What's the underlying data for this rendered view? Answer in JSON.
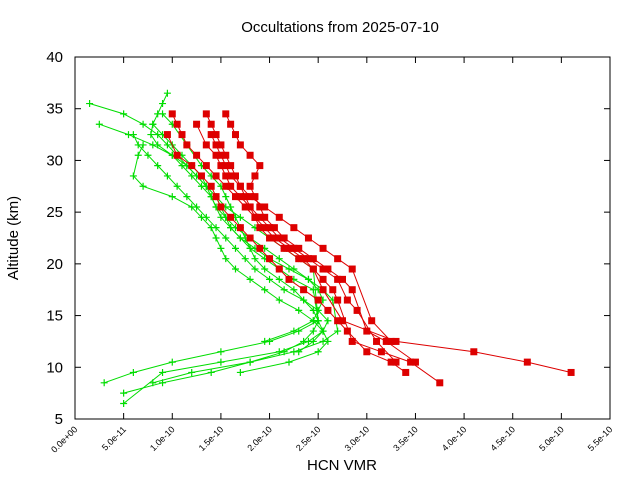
{
  "chart_data": {
    "type": "scatter",
    "title": "Occultations from 2025-07-10",
    "xlabel": "HCN VMR",
    "ylabel": "Altitude (km)",
    "xlim": [
      0,
      5.5e-10
    ],
    "ylim": [
      5,
      40
    ],
    "x_ticks": [
      0,
      5e-11,
      1e-10,
      1.5e-10,
      2e-10,
      2.5e-10,
      3e-10,
      3.5e-10,
      4e-10,
      4.5e-10,
      5e-10,
      5.5e-10
    ],
    "x_tick_labels": [
      "0.0e+00",
      "5.0e-11",
      "1.0e-10",
      "1.5e-10",
      "2.0e-10",
      "2.5e-10",
      "3.0e-10",
      "3.5e-10",
      "4.0e-10",
      "4.5e-10",
      "5.0e-10",
      "5.5e-10"
    ],
    "y_ticks": [
      5,
      10,
      15,
      20,
      25,
      30,
      35,
      40
    ],
    "y_tick_labels": [
      "5",
      "10",
      "15",
      "20",
      "25",
      "30",
      "35",
      "40"
    ],
    "grid": false,
    "legend": "none",
    "series_colors": {
      "plus_profiles": "#00dd00",
      "square_profiles": "#dd0000"
    },
    "series": [
      {
        "marker": "plus",
        "color": "#00dd00",
        "x": [
          9.5e-11,
          9e-11,
          8.5e-11,
          8e-11,
          7.8e-11,
          8.5e-11,
          1e-10,
          1.15e-10,
          1.25e-10,
          1.35e-10,
          1.45e-10,
          1.55e-10,
          1.7e-10,
          1.85e-10,
          2e-10,
          2.15e-10,
          2.3e-10,
          2.45e-10,
          2.5e-10,
          2.3e-10,
          2e-10,
          1.5e-10,
          1e-10,
          6e-11,
          3e-11
        ],
        "y": [
          36.5,
          35.5,
          34.5,
          33.5,
          32.5,
          31.5,
          30.5,
          29.5,
          28.5,
          27.5,
          26.5,
          25.5,
          24.5,
          23.5,
          22.5,
          21.5,
          20.5,
          19.5,
          14.5,
          13.5,
          12.5,
          11.5,
          10.5,
          9.5,
          8.5
        ]
      },
      {
        "marker": "plus",
        "color": "#00dd00",
        "x": [
          1.5e-11,
          5e-11,
          7e-11,
          8.5e-11,
          9.5e-11,
          1.05e-10,
          1.15e-10,
          1.25e-10,
          1.35e-10,
          1.45e-10,
          1.5e-10,
          1.55e-10,
          1.6e-10,
          1.7e-10,
          1.8e-10,
          1.95e-10,
          2.1e-10,
          2.25e-10,
          2.45e-10,
          2.5e-10,
          2.45e-10,
          2.35e-10,
          2.15e-10,
          1.8e-10,
          1.4e-10,
          9e-11,
          5e-11
        ],
        "y": [
          35.5,
          34.5,
          33.5,
          32.5,
          31.5,
          30.5,
          29.5,
          28.5,
          27.5,
          26.5,
          25.5,
          24.5,
          23.5,
          22.5,
          21.5,
          20.5,
          19.5,
          18.5,
          17.5,
          14.5,
          13.5,
          12.5,
          11.5,
          10.5,
          9.5,
          8.5,
          7.5
        ]
      },
      {
        "marker": "plus",
        "color": "#00dd00",
        "x": [
          2.5e-11,
          5.5e-11,
          8e-11,
          1e-10,
          1.1e-10,
          1.2e-10,
          1.3e-10,
          1.4e-10,
          1.45e-10,
          1.5e-10,
          1.6e-10,
          1.7e-10,
          1.85e-10,
          2e-10,
          2.2e-10,
          2.4e-10,
          2.55e-10,
          2.65e-10,
          2.7e-10,
          2.55e-10,
          2.25e-10,
          1.8e-10,
          1.2e-10,
          8e-11
        ],
        "y": [
          33.5,
          32.5,
          31.5,
          30.5,
          29.5,
          28.5,
          27.5,
          26.5,
          25.5,
          24.5,
          23.5,
          22.5,
          21.5,
          20.5,
          19.5,
          18.5,
          17.5,
          16.5,
          13.5,
          12.5,
          11.5,
          10.5,
          9.5,
          8.5
        ]
      },
      {
        "marker": "plus",
        "color": "#00dd00",
        "x": [
          6e-11,
          6.5e-11,
          7.5e-11,
          8.5e-11,
          9.5e-11,
          1.05e-10,
          1.15e-10,
          1.25e-10,
          1.35e-10,
          1.45e-10,
          1.55e-10,
          1.65e-10,
          1.75e-10,
          1.85e-10,
          2e-10,
          2.15e-10,
          2.35e-10,
          2.5e-10,
          2.6e-10,
          2.55e-10,
          2.4e-10,
          2.1e-10,
          1.5e-10,
          9e-11,
          5e-11
        ],
        "y": [
          32.5,
          31.5,
          30.5,
          29.5,
          28.5,
          27.5,
          26.5,
          25.5,
          24.5,
          23.5,
          22.5,
          21.5,
          20.5,
          19.5,
          18.5,
          17.5,
          16.5,
          15.5,
          14.5,
          13.5,
          12.5,
          11.5,
          10.5,
          9.5,
          6.5
        ]
      },
      {
        "marker": "plus",
        "color": "#00dd00",
        "x": [
          7e-11,
          6.5e-11,
          6e-11,
          7e-11,
          1e-10,
          1.2e-10,
          1.3e-10,
          1.4e-10,
          1.45e-10,
          1.5e-10,
          1.55e-10,
          1.65e-10,
          1.8e-10,
          1.95e-10,
          2.1e-10,
          2.3e-10,
          2.45e-10,
          2.55e-10,
          2.6e-10,
          2.5e-10,
          2.2e-10,
          1.7e-10
        ],
        "y": [
          31.5,
          30.5,
          28.5,
          27.5,
          26.5,
          25.5,
          24.5,
          23.5,
          22.5,
          21.5,
          20.5,
          19.5,
          18.5,
          17.5,
          16.5,
          15.5,
          14.5,
          13.5,
          12.5,
          11.5,
          10.5,
          9.5
        ]
      },
      {
        "marker": "plus",
        "color": "#00dd00",
        "x": [
          8e-11,
          9e-11,
          1e-10,
          1.1e-10,
          1.2e-10,
          1.3e-10,
          1.35e-10,
          1.4e-10,
          1.45e-10,
          1.55e-10,
          1.65e-10,
          1.8e-10,
          1.95e-10,
          2.1e-10,
          2.25e-10,
          2.4e-10,
          2.5e-10,
          2.55e-10,
          2.45e-10,
          2.25e-10,
          1.95e-10
        ],
        "y": [
          33.5,
          32.5,
          31.5,
          30.5,
          29.5,
          28.5,
          27.5,
          26.5,
          25.5,
          24.5,
          23.5,
          22.5,
          21.5,
          20.5,
          19.5,
          18.5,
          17.5,
          16.5,
          14.5,
          13.5,
          12.5
        ]
      },
      {
        "marker": "plus",
        "color": "#00dd00",
        "x": [
          9e-11,
          1e-10,
          1.15e-10,
          1.3e-10,
          1.4e-10,
          1.5e-10,
          1.55e-10,
          1.6e-10,
          1.65e-10,
          1.7e-10,
          1.75e-10,
          1.8e-10,
          1.85e-10,
          1.95e-10,
          2.1e-10,
          2.25e-10,
          2.35e-10,
          2.45e-10,
          2.55e-10,
          2.45e-10,
          2.3e-10
        ],
        "y": [
          34.5,
          33.5,
          31.5,
          29.5,
          28.5,
          27.5,
          26.5,
          25.5,
          24.5,
          23.5,
          22.5,
          21.5,
          20.5,
          19.5,
          18.5,
          17.5,
          16.5,
          15.5,
          13.5,
          12.5,
          11.5
        ]
      },
      {
        "marker": "square",
        "color": "#dd0000",
        "x": [
          1e-10,
          1.05e-10,
          1.1e-10,
          1.15e-10,
          1.25e-10,
          1.35e-10,
          1.45e-10,
          1.55e-10,
          1.65e-10,
          1.75e-10,
          1.85e-10,
          1.95e-10,
          2.05e-10,
          2.2e-10,
          2.35e-10,
          2.45e-10,
          2.55e-10,
          2.75e-10,
          3.3e-10,
          4.1e-10,
          4.65e-10,
          5.1e-10
        ],
        "y": [
          34.5,
          33.5,
          32.5,
          31.5,
          30.5,
          29.5,
          28.5,
          27.5,
          26.5,
          25.5,
          24.5,
          23.5,
          22.5,
          21.5,
          20.5,
          19.5,
          17.5,
          14.5,
          12.5,
          11.5,
          10.5,
          9.5
        ]
      },
      {
        "marker": "square",
        "color": "#dd0000",
        "x": [
          1.35e-10,
          1.4e-10,
          1.45e-10,
          1.5e-10,
          1.55e-10,
          1.6e-10,
          1.65e-10,
          1.7e-10,
          1.75e-10,
          1.8e-10,
          1.85e-10,
          1.9e-10,
          2e-10,
          2.15e-10,
          2.3e-10,
          2.45e-10,
          2.55e-10,
          2.65e-10,
          2.7e-10,
          2.85e-10,
          3.15e-10,
          3.45e-10,
          3.75e-10
        ],
        "y": [
          34.5,
          33.5,
          32.5,
          31.5,
          30.5,
          29.5,
          28.5,
          27.5,
          26.5,
          25.5,
          24.5,
          23.5,
          22.5,
          21.5,
          20.5,
          19.5,
          18.5,
          17.5,
          16.5,
          12.5,
          11.5,
          10.5,
          8.5
        ]
      },
      {
        "marker": "square",
        "color": "#dd0000",
        "x": [
          1.55e-10,
          1.6e-10,
          1.65e-10,
          1.7e-10,
          1.8e-10,
          1.9e-10,
          1.85e-10,
          1.8e-10,
          1.85e-10,
          1.9e-10,
          1.95e-10,
          2.05e-10,
          2.15e-10,
          2.3e-10,
          2.45e-10,
          2.6e-10,
          2.75e-10,
          2.85e-10,
          3e-10,
          3.2e-10,
          3.5e-10
        ],
        "y": [
          34.5,
          33.5,
          32.5,
          31.5,
          30.5,
          29.5,
          28.5,
          27.5,
          26.5,
          25.5,
          24.5,
          23.5,
          22.5,
          21.5,
          20.5,
          19.5,
          18.5,
          17.5,
          13.5,
          12.5,
          10.5
        ]
      },
      {
        "marker": "square",
        "color": "#dd0000",
        "x": [
          9.5e-11,
          1.05e-10,
          1.2e-10,
          1.3e-10,
          1.4e-10,
          1.45e-10,
          1.5e-10,
          1.6e-10,
          1.7e-10,
          1.8e-10,
          1.9e-10,
          2e-10,
          2.1e-10,
          2.2e-10,
          2.35e-10,
          2.5e-10,
          2.6e-10,
          2.7e-10,
          2.8e-10,
          3e-10,
          3.25e-10,
          3.4e-10
        ],
        "y": [
          32.5,
          30.5,
          29.5,
          28.5,
          27.5,
          26.5,
          25.5,
          24.5,
          23.5,
          22.5,
          21.5,
          20.5,
          19.5,
          18.5,
          17.5,
          16.5,
          15.5,
          14.5,
          13.5,
          11.5,
          10.5,
          9.5
        ]
      },
      {
        "marker": "square",
        "color": "#dd0000",
        "x": [
          1.25e-10,
          1.35e-10,
          1.45e-10,
          1.5e-10,
          1.55e-10,
          1.6e-10,
          1.7e-10,
          1.8e-10,
          1.9e-10,
          2e-10,
          2.1e-10,
          2.25e-10,
          2.4e-10,
          2.55e-10,
          2.7e-10,
          2.8e-10,
          2.9e-10,
          3.1e-10,
          3.3e-10
        ],
        "y": [
          33.5,
          31.5,
          30.5,
          29.5,
          28.5,
          27.5,
          26.5,
          25.5,
          24.5,
          23.5,
          22.5,
          21.5,
          20.5,
          19.5,
          18.5,
          16.5,
          15.5,
          12.5,
          10.5
        ]
      },
      {
        "marker": "square",
        "color": "#dd0000",
        "x": [
          1.4e-10,
          1.45e-10,
          1.5e-10,
          1.55e-10,
          1.6e-10,
          1.7e-10,
          1.8e-10,
          1.95e-10,
          2.1e-10,
          2.25e-10,
          2.4e-10,
          2.55e-10,
          2.7e-10,
          2.85e-10,
          3.05e-10,
          3.25e-10
        ],
        "y": [
          32.5,
          31.5,
          30.5,
          29.5,
          28.5,
          27.5,
          26.5,
          25.5,
          24.5,
          23.5,
          22.5,
          21.5,
          20.5,
          19.5,
          14.5,
          12.5
        ]
      }
    ]
  }
}
